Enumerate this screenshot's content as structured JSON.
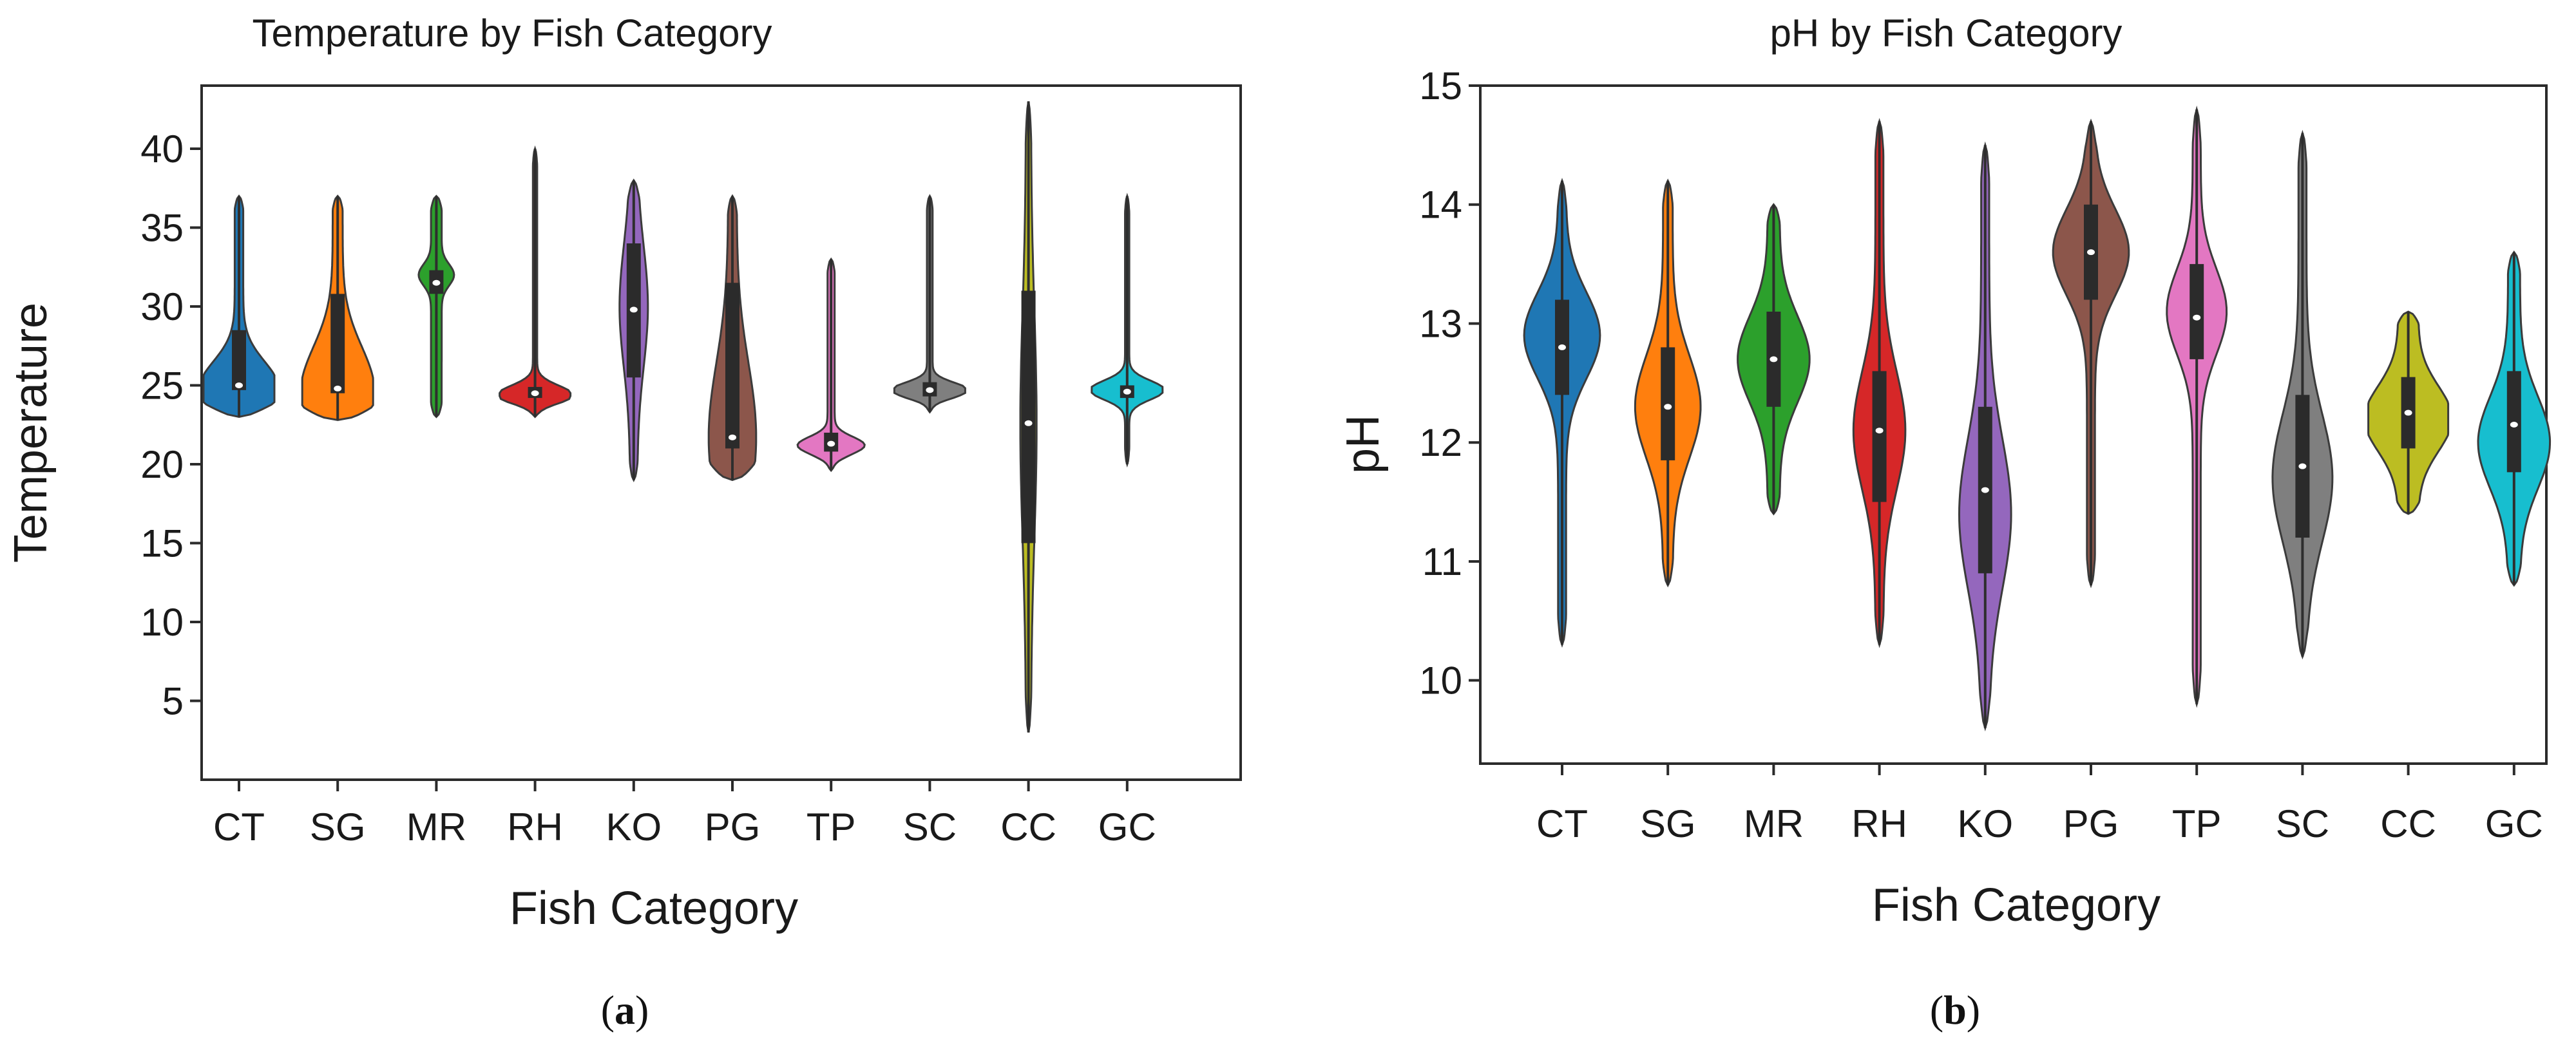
{
  "chart_data": [
    {
      "type": "violin",
      "panel": "a",
      "caption": "(a)",
      "title": "Temperature by Fish Category",
      "xlabel": "Fish Category",
      "ylabel": "Temperature",
      "ylim": [
        0,
        44
      ],
      "yticks": [
        5,
        10,
        15,
        20,
        25,
        30,
        35,
        40
      ],
      "categories": [
        "CT",
        "SG",
        "MR",
        "RH",
        "KO",
        "PG",
        "TP",
        "SC",
        "CC",
        "GC"
      ],
      "series": [
        {
          "name": "CT",
          "color": "#1f77b4",
          "min": 23,
          "max": 37,
          "q1": 24.7,
          "median": 25.0,
          "q3": 28.5,
          "mode": 24.8,
          "peak_width": 1.0,
          "tail_width": 0.12
        },
        {
          "name": "SG",
          "color": "#ff7f0e",
          "min": 22.8,
          "max": 37,
          "q1": 24.5,
          "median": 24.8,
          "q3": 30.8,
          "mode": 24.6,
          "peak_width": 0.9,
          "tail_width": 0.14
        },
        {
          "name": "MR",
          "color": "#2ca02c",
          "min": 23,
          "max": 37,
          "q1": 30.8,
          "median": 31.5,
          "q3": 32.3,
          "mode": 32.0,
          "peak_width": 0.35,
          "tail_width": 0.15
        },
        {
          "name": "RH",
          "color": "#d62728",
          "min": 23,
          "max": 40,
          "q1": 24.2,
          "median": 24.5,
          "q3": 24.9,
          "mode": 24.4,
          "peak_width": 1.0,
          "tail_width": 0.06
        },
        {
          "name": "KO",
          "color": "#9467bd",
          "min": 19,
          "max": 38,
          "q1": 25.5,
          "median": 29.8,
          "q3": 34.0,
          "mode": 30.0,
          "peak_width": 0.3,
          "tail_width": 0.1
        },
        {
          "name": "PG",
          "color": "#8c564b",
          "min": 19,
          "max": 37,
          "q1": 21.0,
          "median": 21.7,
          "q3": 31.5,
          "mode": 21.7,
          "peak_width": 0.55,
          "tail_width": 0.12
        },
        {
          "name": "TP",
          "color": "#e377c2",
          "min": 19.6,
          "max": 33,
          "q1": 20.8,
          "median": 21.3,
          "q3": 22.0,
          "mode": 21.2,
          "peak_width": 0.85,
          "tail_width": 0.1
        },
        {
          "name": "SC",
          "color": "#7f7f7f",
          "min": 23.3,
          "max": 37,
          "q1": 24.3,
          "median": 24.7,
          "q3": 25.2,
          "mode": 24.7,
          "peak_width": 1.0,
          "tail_width": 0.08
        },
        {
          "name": "CC",
          "color": "#bcbd22",
          "min": 3,
          "max": 43,
          "q1": 15.0,
          "median": 22.6,
          "q3": 31.0,
          "mode": 22.5,
          "peak_width": 0.16,
          "tail_width": 0.07
        },
        {
          "name": "GC",
          "color": "#17becf",
          "min": 20,
          "max": 37,
          "q1": 24.2,
          "median": 24.6,
          "q3": 25.0,
          "mode": 24.7,
          "peak_width": 1.0,
          "tail_width": 0.06
        }
      ]
    },
    {
      "type": "violin",
      "panel": "b",
      "caption": "(b)",
      "title": "pH by Fish Category",
      "xlabel": "Fish Category",
      "ylabel": "pH",
      "ylim": [
        9.3,
        15.0
      ],
      "yticks": [
        10,
        11,
        12,
        13,
        14,
        15
      ],
      "categories": [
        "CT",
        "SG",
        "MR",
        "RH",
        "KO",
        "PG",
        "TP",
        "SC",
        "CC",
        "GC"
      ],
      "series": [
        {
          "name": "CT",
          "color": "#1f77b4",
          "min": 10.3,
          "max": 14.2,
          "q1": 12.4,
          "median": 12.8,
          "q3": 13.2,
          "mode": 12.9,
          "peak_width": 0.85,
          "tail_width": 0.1
        },
        {
          "name": "SG",
          "color": "#ff7f0e",
          "min": 10.8,
          "max": 14.2,
          "q1": 11.85,
          "median": 12.3,
          "q3": 12.8,
          "mode": 12.3,
          "peak_width": 0.7,
          "tail_width": 0.12
        },
        {
          "name": "MR",
          "color": "#2ca02c",
          "min": 11.4,
          "max": 14.0,
          "q1": 12.3,
          "median": 12.7,
          "q3": 13.1,
          "mode": 12.7,
          "peak_width": 0.75,
          "tail_width": 0.15
        },
        {
          "name": "RH",
          "color": "#d62728",
          "min": 10.3,
          "max": 14.7,
          "q1": 11.5,
          "median": 12.1,
          "q3": 12.6,
          "mode": 12.1,
          "peak_width": 0.55,
          "tail_width": 0.1
        },
        {
          "name": "KO",
          "color": "#9467bd",
          "min": 9.6,
          "max": 14.5,
          "q1": 10.9,
          "median": 11.6,
          "q3": 12.3,
          "mode": 11.4,
          "peak_width": 0.55,
          "tail_width": 0.1
        },
        {
          "name": "PG",
          "color": "#8c564b",
          "min": 10.8,
          "max": 14.7,
          "q1": 13.2,
          "median": 13.6,
          "q3": 14.0,
          "mode": 13.6,
          "peak_width": 0.85,
          "tail_width": 0.1
        },
        {
          "name": "TP",
          "color": "#e377c2",
          "min": 9.8,
          "max": 14.8,
          "q1": 12.7,
          "median": 13.05,
          "q3": 13.5,
          "mode": 13.1,
          "peak_width": 0.65,
          "tail_width": 0.1
        },
        {
          "name": "SC",
          "color": "#7f7f7f",
          "min": 10.2,
          "max": 14.6,
          "q1": 11.2,
          "median": 11.8,
          "q3": 12.4,
          "mode": 11.7,
          "peak_width": 0.65,
          "tail_width": 0.1
        },
        {
          "name": "CC",
          "color": "#bcbd22",
          "min": 11.4,
          "max": 13.1,
          "q1": 11.95,
          "median": 12.25,
          "q3": 12.55,
          "mode": 12.2,
          "peak_width": 0.85,
          "tail_width": 0.25
        },
        {
          "name": "GC",
          "color": "#17becf",
          "min": 10.8,
          "max": 13.6,
          "q1": 11.75,
          "median": 12.15,
          "q3": 12.6,
          "mode": 12.0,
          "peak_width": 0.75,
          "tail_width": 0.15
        }
      ]
    }
  ]
}
